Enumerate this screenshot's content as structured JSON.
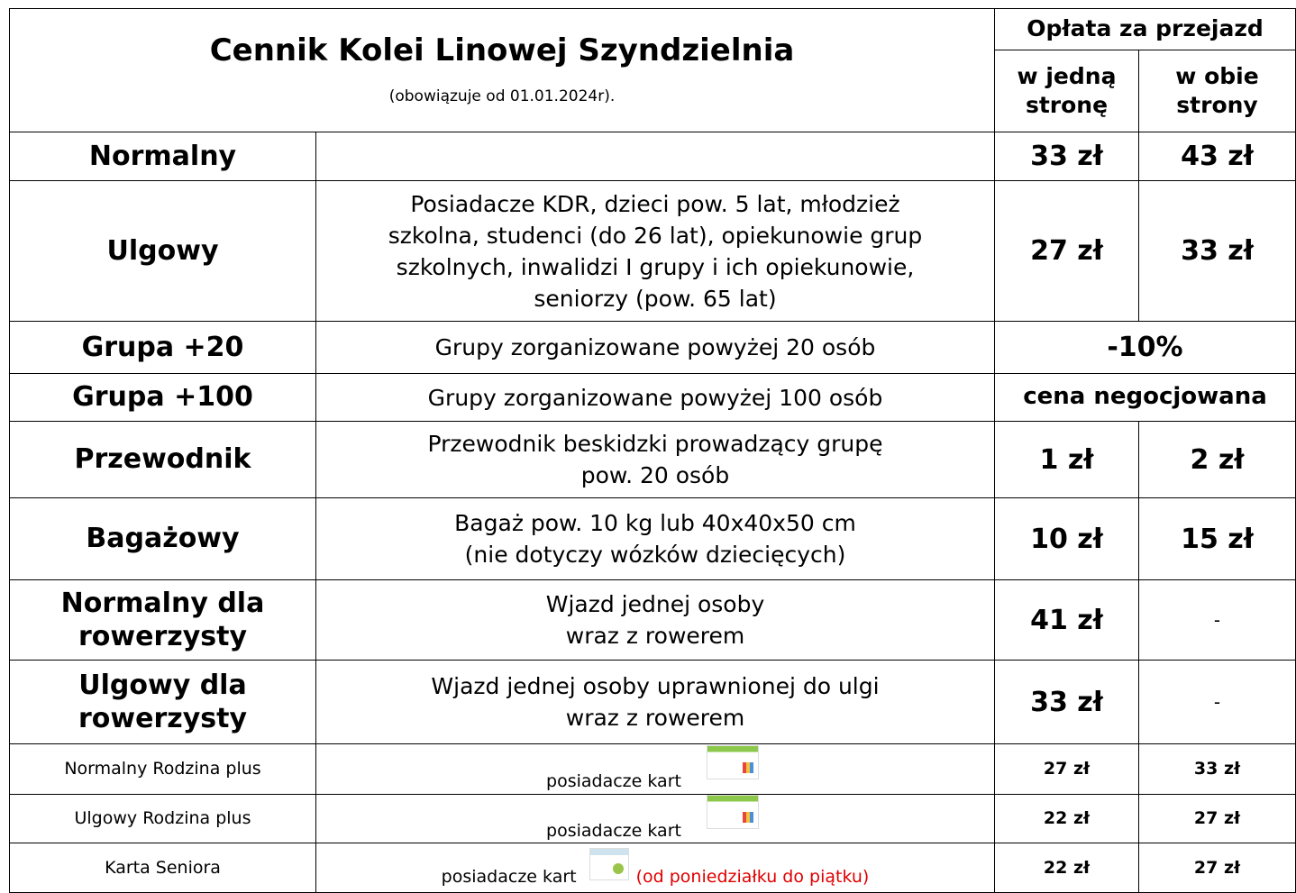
{
  "header": {
    "title": "Cennik Kolei Linowej Szyndzielnia",
    "subtitle": "(obowiązuje od 01.01.2024r).",
    "fee_header": "Opłata za przejazd",
    "one_way": "w jedną\nstronę",
    "both_ways": "w obie\nstrony"
  },
  "rows": [
    {
      "category": "Normalny",
      "one_way": "33 zł",
      "both_ways": "43 zł"
    },
    {
      "category": "Ulgowy",
      "description": "Posiadacze KDR, dzieci pow. 5 lat, młodzież\nszkolna, studenci (do 26 lat), opiekunowie grup\nszkolnych, inwalidzi I grupy i ich opiekunowie,\nseniorzy (pow. 65 lat)",
      "one_way": "27 zł",
      "both_ways": "33 zł"
    },
    {
      "category": "Grupa +20",
      "description": "Grupy zorganizowane powyżej 20 osób",
      "fee": "-10%"
    },
    {
      "category": "Grupa +100",
      "description": "Grupy zorganizowane powyżej 100 osób",
      "fee": "cena negocjowana"
    },
    {
      "category": "Przewodnik",
      "description": "Przewodnik beskidzki prowadzący grupę\npow. 20 osób",
      "one_way": "1 zł",
      "both_ways": "2 zł"
    },
    {
      "category": "Bagażowy",
      "description": "Bagaż pow. 10 kg lub 40x40x50 cm\n(nie dotyczy wózków dziecięcych)",
      "one_way": "10 zł",
      "both_ways": "15 zł"
    },
    {
      "category": "Normalny dla\nrowerzysty",
      "description": "Wjazd jednej osoby\nwraz z rowerem",
      "one_way": "41 zł",
      "both_ways": "-"
    },
    {
      "category": "Ulgowy dla\nrowerzysty",
      "description": "Wjazd jednej osoby uprawnionej do ulgi\nwraz z rowerem",
      "one_way": "33 zł",
      "both_ways": "-"
    },
    {
      "category": "Normalny Rodzina plus",
      "description": "posiadacze kart",
      "card": "rodzina",
      "one_way": "27 zł",
      "both_ways": "33 zł"
    },
    {
      "category": "Ulgowy Rodzina plus",
      "description": "posiadacze kart",
      "card": "rodzina",
      "one_way": "22 zł",
      "both_ways": "27 zł"
    },
    {
      "category": "Karta Seniora",
      "description": "posiadacze kart",
      "card": "senior",
      "note": "(od poniedziałku do piątku)",
      "one_way": "22 zł",
      "both_ways": "27 zł"
    }
  ]
}
